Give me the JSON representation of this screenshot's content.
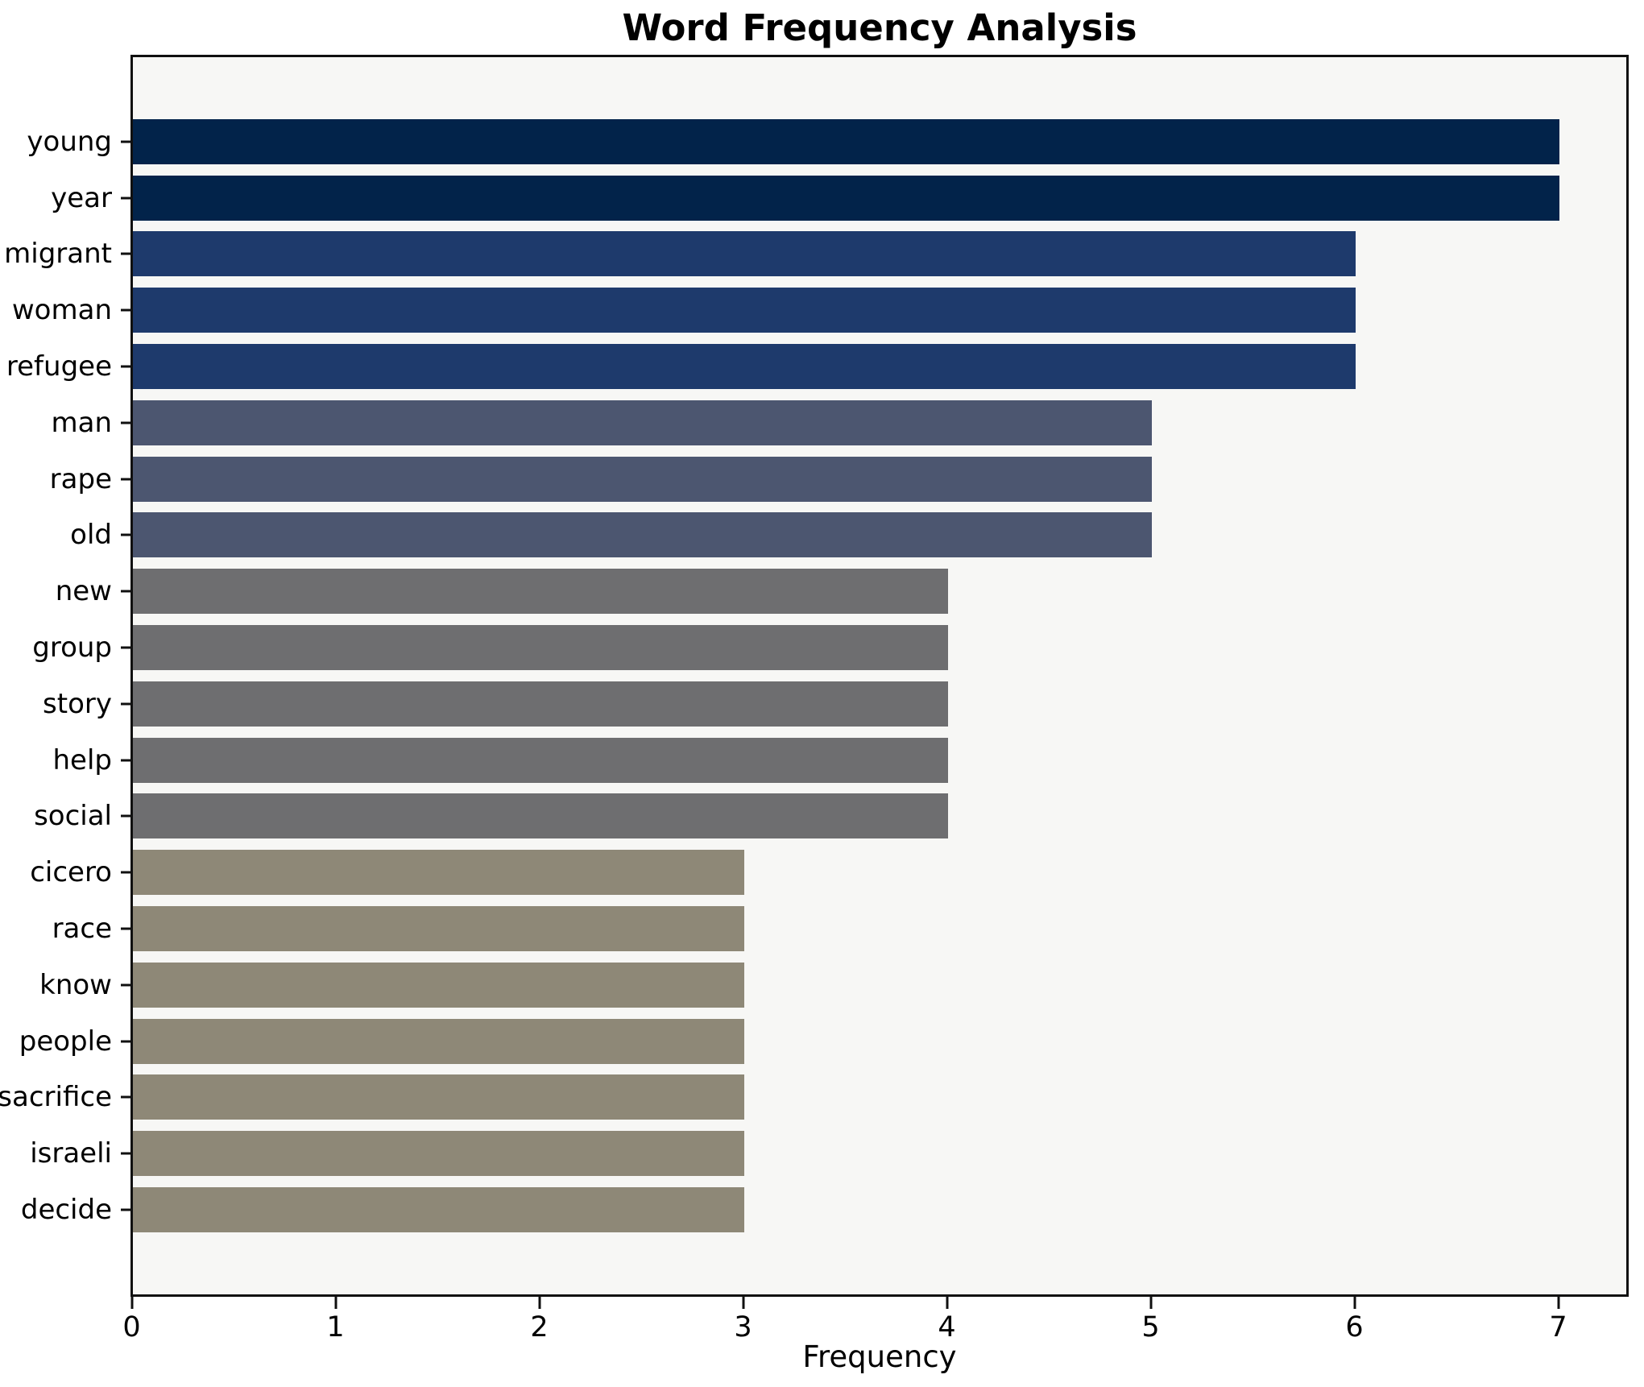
{
  "title": "Word Frequency Analysis",
  "chart_data": {
    "type": "bar",
    "orientation": "horizontal",
    "title": "Word Frequency Analysis",
    "xlabel": "Frequency",
    "ylabel": "",
    "grid": false,
    "legend": null,
    "xlim": [
      0,
      7.35
    ],
    "x_ticks": [
      0,
      1,
      2,
      3,
      4,
      5,
      6,
      7
    ],
    "categories": [
      "young",
      "year",
      "migrant",
      "woman",
      "refugee",
      "man",
      "rape",
      "old",
      "new",
      "group",
      "story",
      "help",
      "social",
      "cicero",
      "race",
      "know",
      "people",
      "sacrifice",
      "israeli",
      "decide"
    ],
    "values": [
      7,
      7,
      6,
      6,
      6,
      5,
      5,
      5,
      4,
      4,
      4,
      4,
      4,
      3,
      3,
      3,
      3,
      3,
      3,
      3
    ],
    "bar_colors": [
      "#02234a",
      "#02234a",
      "#1e3a6c",
      "#1e3a6c",
      "#1e3a6c",
      "#4c5670",
      "#4c5670",
      "#4c5670",
      "#6e6e70",
      "#6e6e70",
      "#6e6e70",
      "#6e6e70",
      "#6e6e70",
      "#8e8877",
      "#8e8877",
      "#8e8877",
      "#8e8877",
      "#8e8877",
      "#8e8877",
      "#8e8877"
    ],
    "value_color_map": {
      "7": "#02234a",
      "6": "#1e3a6c",
      "5": "#4c5670",
      "4": "#6e6e70",
      "3": "#8e8877"
    },
    "colors": {
      "plot_background": "#f7f7f5",
      "figure_background": "#ffffff",
      "spine": "#101010",
      "text": "#000000"
    }
  }
}
